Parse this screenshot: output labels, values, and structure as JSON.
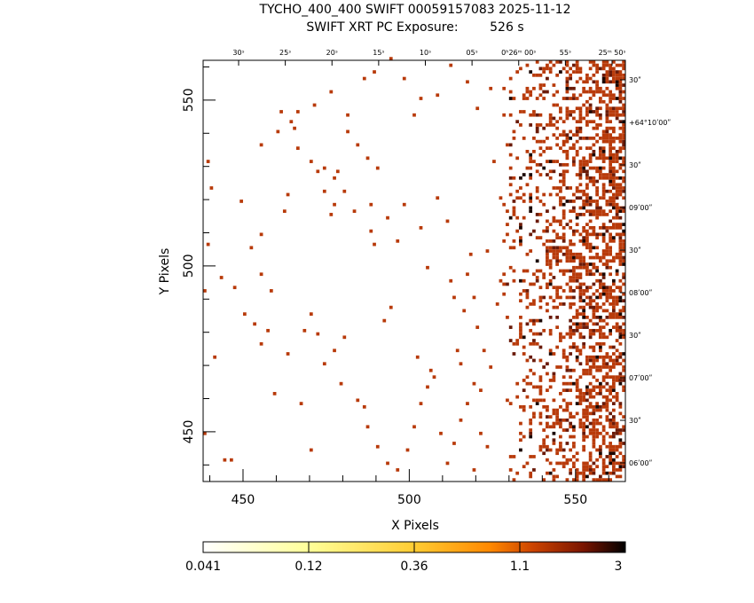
{
  "chart_data": {
    "type": "heatmap",
    "title": "TYCHO_400_400 SWIFT 00059157083 2025-11-12",
    "subtitle": "SWIFT XRT PC Exposure:        526 s",
    "xlabel": "X Pixels",
    "ylabel": "Y Pixels",
    "xlim": [
      438,
      565
    ],
    "ylim": [
      435,
      562
    ],
    "x_ticks": [
      450,
      500,
      550
    ],
    "y_ticks": [
      450,
      500,
      550
    ],
    "top_ticks": [
      "30ˢ",
      "25ˢ",
      "20ˢ",
      "15ˢ",
      "10ˢ",
      "05ˢ",
      "0ʰ26ᵐ 00ˢ",
      "55ˢ",
      "25ᵐ 50ˢ"
    ],
    "right_ticks": [
      "30ʺ",
      "+64°10ʹ00ʺ",
      "30ʺ",
      "09ʹ00ʺ",
      "30ʺ",
      "08ʹ00ʺ",
      "30ʺ",
      "07ʹ00ʺ",
      "30ʺ",
      "06ʹ00ʺ"
    ],
    "colorbar": {
      "labels": [
        "0.041",
        "0.12",
        "0.36",
        "1.1",
        "3"
      ],
      "colors": [
        "#ffffff",
        "#ffff99",
        "#ffcc33",
        "#ff8800",
        "#cc4400",
        "#7a1500",
        "#000000"
      ]
    },
    "counts_colors": {
      "one": "#b83a0a",
      "two": "#6a1a08",
      "three": "#1a0500"
    },
    "pixels": [
      [
        438,
        449
      ],
      [
        438,
        492
      ],
      [
        439,
        531
      ],
      [
        440,
        523
      ],
      [
        441,
        472
      ],
      [
        439,
        506
      ],
      [
        443,
        496
      ],
      [
        447,
        493
      ],
      [
        449,
        519
      ],
      [
        450,
        485
      ],
      [
        444,
        441
      ],
      [
        446,
        441
      ],
      [
        452,
        505
      ],
      [
        455,
        509
      ],
      [
        455,
        497
      ],
      [
        457,
        480
      ],
      [
        458,
        492
      ],
      [
        462,
        516
      ],
      [
        463,
        521
      ],
      [
        464,
        543
      ],
      [
        465,
        541
      ],
      [
        470,
        485
      ],
      [
        472,
        479
      ],
      [
        476,
        515
      ],
      [
        478,
        528
      ],
      [
        479,
        464
      ],
      [
        483,
        516
      ],
      [
        486,
        457
      ],
      [
        488,
        518
      ],
      [
        488,
        510
      ],
      [
        489,
        506
      ],
      [
        492,
        483
      ],
      [
        494,
        487
      ],
      [
        496,
        507
      ],
      [
        498,
        518
      ],
      [
        501,
        545
      ],
      [
        502,
        472
      ],
      [
        503,
        511
      ],
      [
        505,
        499
      ],
      [
        506,
        468
      ],
      [
        508,
        520
      ],
      [
        511,
        513
      ],
      [
        512,
        495
      ],
      [
        513,
        490
      ],
      [
        514,
        474
      ],
      [
        515,
        470
      ],
      [
        516,
        486
      ],
      [
        517,
        497
      ],
      [
        518,
        503
      ],
      [
        519,
        490
      ],
      [
        520,
        481
      ],
      [
        521,
        462
      ],
      [
        522,
        474
      ],
      [
        523,
        504
      ],
      [
        524,
        469
      ],
      [
        526,
        488
      ],
      [
        527,
        495
      ],
      [
        528,
        491
      ],
      [
        529,
        484
      ],
      [
        455,
        536
      ],
      [
        460,
        540
      ],
      [
        466,
        546
      ],
      [
        471,
        548
      ],
      [
        476,
        552
      ],
      [
        481,
        545
      ],
      [
        486,
        556
      ],
      [
        489,
        558
      ],
      [
        494,
        562
      ],
      [
        498,
        556
      ],
      [
        503,
        550
      ],
      [
        508,
        551
      ],
      [
        512,
        560
      ],
      [
        517,
        555
      ],
      [
        520,
        547
      ],
      [
        524,
        553
      ],
      [
        525,
        531
      ],
      [
        527,
        520
      ],
      [
        529,
        509
      ],
      [
        530,
        529
      ],
      [
        531,
        540
      ],
      [
        533,
        546
      ],
      [
        535,
        553
      ],
      [
        472,
        528
      ],
      [
        474,
        522
      ],
      [
        477,
        518
      ],
      [
        480,
        522
      ],
      [
        468,
        480
      ],
      [
        474,
        470
      ],
      [
        477,
        474
      ],
      [
        480,
        478
      ],
      [
        484,
        459
      ],
      [
        487,
        451
      ],
      [
        490,
        445
      ],
      [
        493,
        440
      ],
      [
        496,
        438
      ],
      [
        499,
        444
      ],
      [
        501,
        451
      ],
      [
        503,
        458
      ],
      [
        505,
        463
      ],
      [
        507,
        466
      ],
      [
        509,
        449
      ],
      [
        511,
        440
      ],
      [
        513,
        446
      ],
      [
        515,
        453
      ],
      [
        517,
        458
      ],
      [
        519,
        464
      ],
      [
        521,
        449
      ],
      [
        523,
        445
      ],
      [
        519,
        438
      ],
      [
        453,
        482
      ],
      [
        455,
        476
      ],
      [
        459,
        461
      ],
      [
        463,
        473
      ],
      [
        467,
        458
      ],
      [
        470,
        444
      ],
      [
        461,
        546
      ],
      [
        466,
        535
      ],
      [
        470,
        531
      ],
      [
        474,
        529
      ],
      [
        477,
        526
      ],
      [
        481,
        540
      ],
      [
        484,
        536
      ],
      [
        487,
        532
      ],
      [
        490,
        529
      ],
      [
        493,
        514
      ]
    ]
  }
}
